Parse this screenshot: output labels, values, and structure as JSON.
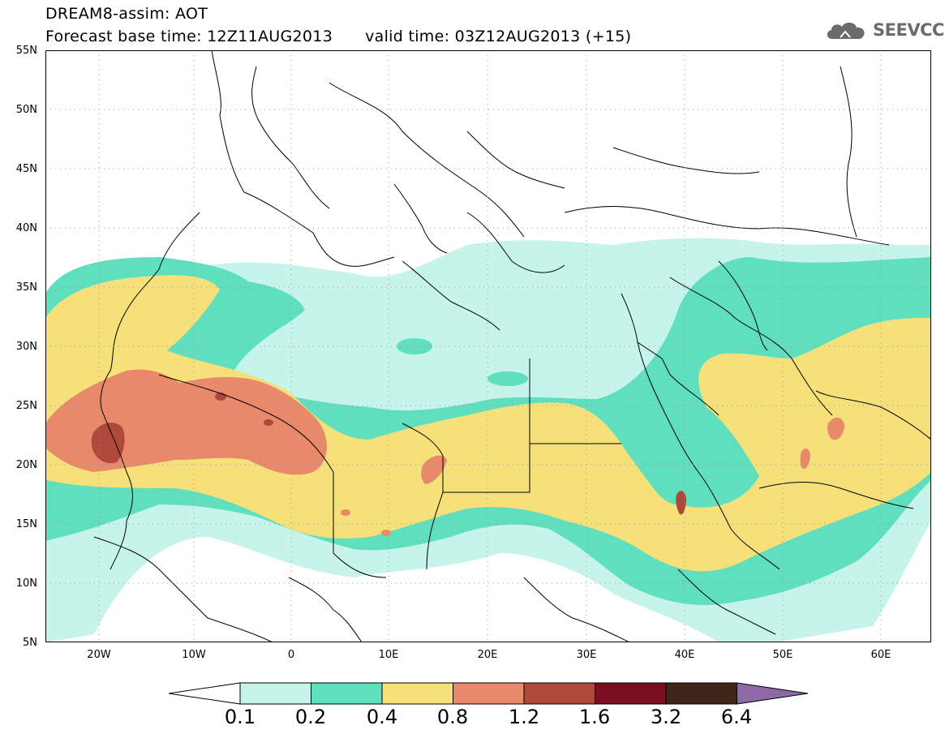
{
  "header": {
    "line1": "DREAM8-assim: AOT",
    "base_time": "Forecast base time: 12Z11AUG2013",
    "valid_time": "valid time: 03Z12AUG2013 (+15)"
  },
  "logo": {
    "text": "SEEVCCC",
    "icon": "cloud-icon"
  },
  "map": {
    "lat_labels": [
      "55N",
      "50N",
      "45N",
      "40N",
      "35N",
      "30N",
      "25N",
      "20N",
      "15N",
      "10N",
      "5N"
    ],
    "lon_labels": [
      "20W",
      "10W",
      "0",
      "10E",
      "20E",
      "30E",
      "40E",
      "50E",
      "60E"
    ],
    "land_color": "#ffffff",
    "boundary_color": "#000000",
    "grid": "dotted"
  },
  "colorbar": {
    "labels": [
      "0.1",
      "0.2",
      "0.4",
      "0.8",
      "1.2",
      "1.6",
      "3.2",
      "6.4"
    ],
    "colors": [
      "#c6f3ea",
      "#5fdfbd",
      "#f5e07a",
      "#e9896b",
      "#ad4a3c",
      "#7a0f22",
      "#3f2618",
      "#8d6aa6"
    ],
    "below_color": "#ffffff"
  }
}
